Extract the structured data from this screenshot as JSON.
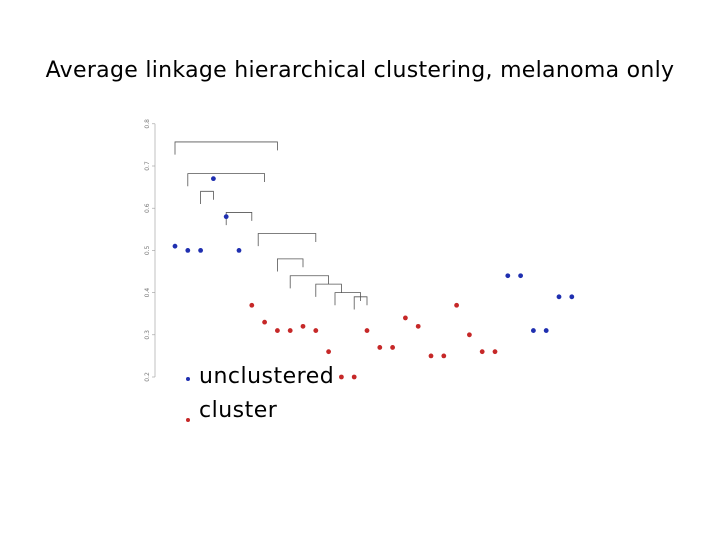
{
  "title": "Average linkage hierarchical clustering, melanoma only",
  "legend": {
    "items": [
      {
        "label": "unclustered",
        "color": "#1f2fb0"
      },
      {
        "label": "cluster",
        "color": "#c62828"
      }
    ]
  },
  "chart_data": {
    "type": "dendrogram",
    "ylim": [
      0.2,
      0.8
    ],
    "yticks": [
      "0.2",
      "0.3",
      "0.4",
      "0.5",
      "0.6",
      "0.7",
      "0.8"
    ],
    "colors": {
      "unclustered": "#1f2fb0",
      "cluster": "#c62828",
      "line": "#555555"
    },
    "merges": [
      {
        "x1": 1,
        "x2": 9,
        "height": 0.757
      },
      {
        "x1": 2,
        "x2": 8,
        "height": 0.682
      },
      {
        "x1": 3,
        "x2": 4,
        "height": 0.64
      },
      {
        "x1": 5,
        "x2": 7,
        "height": 0.59
      },
      {
        "x1": 7.5,
        "x2": 12,
        "height": 0.54
      },
      {
        "x1": 9,
        "x2": 11,
        "height": 0.48
      },
      {
        "x1": 10,
        "x2": 13,
        "height": 0.44
      },
      {
        "x1": 12,
        "x2": 14,
        "height": 0.42
      },
      {
        "x1": 13.5,
        "x2": 15.5,
        "height": 0.4
      },
      {
        "x1": 15,
        "x2": 16,
        "height": 0.39
      }
    ],
    "leaves": [
      {
        "x": 1,
        "y": 0.51,
        "group": "unclustered"
      },
      {
        "x": 2,
        "y": 0.5,
        "group": "unclustered"
      },
      {
        "x": 3,
        "y": 0.5,
        "group": "unclustered"
      },
      {
        "x": 4,
        "y": 0.67,
        "group": "unclustered"
      },
      {
        "x": 5,
        "y": 0.58,
        "group": "unclustered"
      },
      {
        "x": 6,
        "y": 0.5,
        "group": "unclustered"
      },
      {
        "x": 7,
        "y": 0.37,
        "group": "cluster"
      },
      {
        "x": 8,
        "y": 0.33,
        "group": "cluster"
      },
      {
        "x": 9,
        "y": 0.31,
        "group": "cluster"
      },
      {
        "x": 10,
        "y": 0.31,
        "group": "cluster"
      },
      {
        "x": 11,
        "y": 0.32,
        "group": "cluster"
      },
      {
        "x": 12,
        "y": 0.31,
        "group": "cluster"
      },
      {
        "x": 13,
        "y": 0.26,
        "group": "cluster"
      },
      {
        "x": 14,
        "y": 0.2,
        "group": "cluster"
      },
      {
        "x": 15,
        "y": 0.2,
        "group": "cluster"
      },
      {
        "x": 16,
        "y": 0.31,
        "group": "cluster"
      },
      {
        "x": 17,
        "y": 0.27,
        "group": "cluster"
      },
      {
        "x": 18,
        "y": 0.27,
        "group": "cluster"
      },
      {
        "x": 19,
        "y": 0.34,
        "group": "cluster"
      },
      {
        "x": 20,
        "y": 0.32,
        "group": "cluster"
      },
      {
        "x": 21,
        "y": 0.25,
        "group": "cluster"
      },
      {
        "x": 22,
        "y": 0.25,
        "group": "cluster"
      },
      {
        "x": 23,
        "y": 0.37,
        "group": "cluster"
      },
      {
        "x": 24,
        "y": 0.3,
        "group": "cluster"
      },
      {
        "x": 25,
        "y": 0.26,
        "group": "cluster"
      },
      {
        "x": 26,
        "y": 0.26,
        "group": "cluster"
      },
      {
        "x": 27,
        "y": 0.44,
        "group": "unclustered"
      },
      {
        "x": 28,
        "y": 0.44,
        "group": "unclustered"
      },
      {
        "x": 29,
        "y": 0.31,
        "group": "unclustered"
      },
      {
        "x": 30,
        "y": 0.31,
        "group": "unclustered"
      },
      {
        "x": 31,
        "y": 0.39,
        "group": "unclustered"
      },
      {
        "x": 32,
        "y": 0.39,
        "group": "unclustered"
      }
    ]
  }
}
